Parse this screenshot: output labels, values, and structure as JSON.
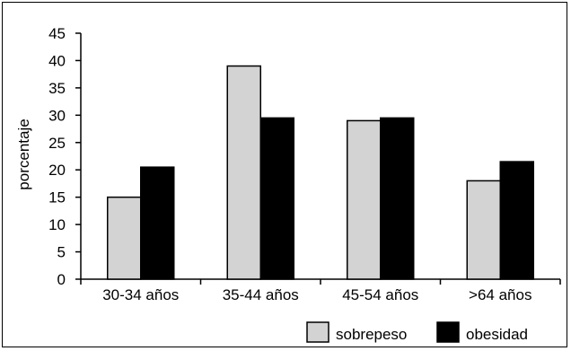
{
  "chart_data": {
    "type": "bar",
    "title": "",
    "xlabel": "",
    "ylabel": "porcentaje",
    "categories": [
      "30-34 años",
      "35-44 años",
      "45-54 años",
      ">64 años"
    ],
    "series": [
      {
        "name": "sobrepeso",
        "values": [
          15,
          39,
          29,
          18
        ],
        "color": "#d3d3d3"
      },
      {
        "name": "obesidad",
        "values": [
          20.5,
          29.5,
          29.5,
          21.5
        ],
        "color": "#000000"
      }
    ],
    "yticks": [
      "0",
      "5",
      "10",
      "15",
      "20",
      "25",
      "30",
      "35",
      "40",
      "45"
    ],
    "ylim": [
      0,
      45
    ],
    "grid": false,
    "legend_position": "bottom-right"
  }
}
